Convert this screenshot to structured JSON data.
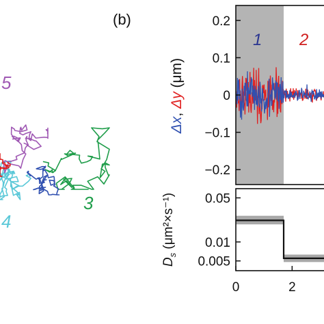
{
  "panel_label": "(b)",
  "chart_data": [
    {
      "type": "line",
      "subtype": "trajectories",
      "series": [
        {
          "name": "3",
          "color": "#1f9d4a"
        },
        {
          "name": "4",
          "color": "#5ac8d8"
        },
        {
          "name": "5",
          "color": "#a05ab4"
        },
        {
          "name": "",
          "color": "#e02020"
        },
        {
          "name": "",
          "color": "#3050b0"
        }
      ]
    },
    {
      "type": "line",
      "ylabel_parts": [
        "Δx",
        ", ",
        "Δy",
        " (μm)"
      ],
      "ylabel_colors": [
        "#3050b0",
        "#111111",
        "#e02020",
        "#111111"
      ],
      "yticks": [
        "0.2",
        "0.1",
        "0",
        "−0.1",
        "−0.2"
      ],
      "ytick_values": [
        0.2,
        0.1,
        0,
        -0.1,
        -0.2
      ],
      "ylim": [
        -0.24,
        0.24
      ],
      "xlim": [
        0,
        3.4
      ],
      "segments": [
        {
          "label": "1",
          "x_start": 0,
          "x_end": 1.7,
          "shaded": true,
          "color": "#2a3590"
        },
        {
          "label": "2",
          "x_start": 1.7,
          "x_end": 3.4,
          "shaded": false,
          "color": "#d02020"
        }
      ],
      "series": [
        {
          "name": "Δx",
          "color": "#3050b0"
        },
        {
          "name": "Δy",
          "color": "#e02020"
        }
      ]
    },
    {
      "type": "line",
      "ylabel_main": "D",
      "ylabel_sub": "s",
      "ylabel_unit": " (μm²×s⁻¹)",
      "yscale": "log",
      "yticks": [
        "0.05",
        "0.01",
        "0.005"
      ],
      "ytick_values": [
        0.05,
        0.01,
        0.005
      ],
      "ylim": [
        0.0035,
        0.07
      ],
      "xticks": [
        "0",
        "2"
      ],
      "xtick_values": [
        0,
        2
      ],
      "xlim": [
        0,
        3.4
      ],
      "x": [
        0,
        1.7,
        1.7,
        3.4
      ],
      "y": [
        0.022,
        0.022,
        0.0055,
        0.0055
      ],
      "band": [
        [
          0.019,
          0.026
        ],
        [
          0.0048,
          0.0063
        ]
      ]
    }
  ]
}
